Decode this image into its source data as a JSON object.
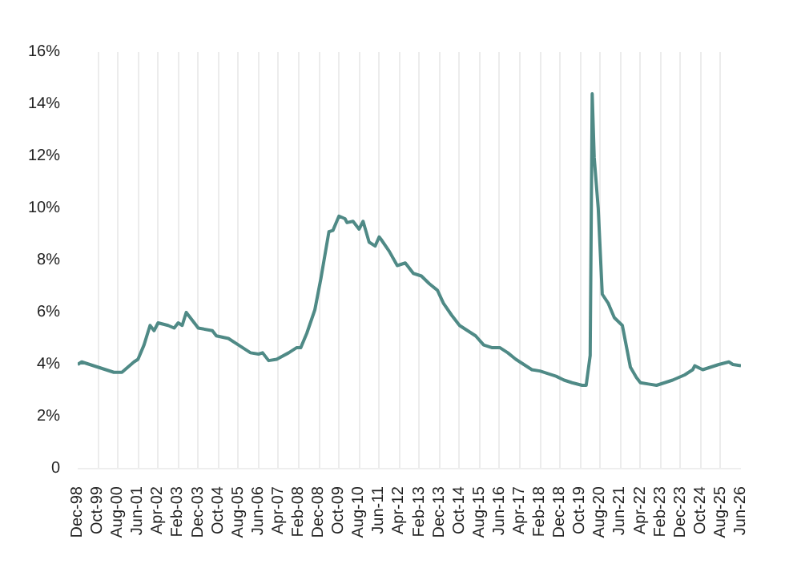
{
  "chart_data": {
    "type": "line",
    "grid": "x",
    "marker": "none",
    "line_style": "solid",
    "xlim": [
      "1998-12",
      "2026-06"
    ],
    "xticks": [
      {
        "value": "1998-12",
        "label": "Dec-98"
      },
      {
        "value": "1999-10",
        "label": "Oct-99"
      },
      {
        "value": "2000-08",
        "label": "Aug-00"
      },
      {
        "value": "2001-06",
        "label": "Jun-01"
      },
      {
        "value": "2002-04",
        "label": "Apr-02"
      },
      {
        "value": "2003-02",
        "label": "Feb-03"
      },
      {
        "value": "2003-12",
        "label": "Dec-03"
      },
      {
        "value": "2004-10",
        "label": "Oct-04"
      },
      {
        "value": "2005-08",
        "label": "Aug-05"
      },
      {
        "value": "2006-06",
        "label": "Jun-06"
      },
      {
        "value": "2007-04",
        "label": "Apr-07"
      },
      {
        "value": "2008-02",
        "label": "Feb-08"
      },
      {
        "value": "2008-12",
        "label": "Dec-08"
      },
      {
        "value": "2009-10",
        "label": "Oct-09"
      },
      {
        "value": "2010-08",
        "label": "Aug-10"
      },
      {
        "value": "2011-06",
        "label": "Jun-11"
      },
      {
        "value": "2012-04",
        "label": "Apr-12"
      },
      {
        "value": "2013-02",
        "label": "Feb-13"
      },
      {
        "value": "2013-12",
        "label": "Dec-13"
      },
      {
        "value": "2014-10",
        "label": "Oct-14"
      },
      {
        "value": "2015-08",
        "label": "Aug-15"
      },
      {
        "value": "2016-06",
        "label": "Jun-16"
      },
      {
        "value": "2017-04",
        "label": "Apr-17"
      },
      {
        "value": "2018-02",
        "label": "Feb-18"
      },
      {
        "value": "2018-12",
        "label": "Dec-18"
      },
      {
        "value": "2019-10",
        "label": "Oct-19"
      },
      {
        "value": "2020-08",
        "label": "Aug-20"
      },
      {
        "value": "2021-06",
        "label": "Jun-21"
      },
      {
        "value": "2022-04",
        "label": "Apr-22"
      },
      {
        "value": "2023-02",
        "label": "Feb-23"
      },
      {
        "value": "2023-12",
        "label": "Dec-23"
      },
      {
        "value": "2024-10",
        "label": "Oct-24"
      },
      {
        "value": "2025-08",
        "label": "Aug-25"
      },
      {
        "value": "2026-06",
        "label": "Jun-26"
      }
    ],
    "ylim": [
      0,
      16
    ],
    "yticks": [
      0,
      {
        "value": 2,
        "label": "2%"
      },
      {
        "value": 4,
        "label": "4%"
      },
      {
        "value": 6,
        "label": "6%"
      },
      {
        "value": 8,
        "label": "8%"
      },
      {
        "value": 10,
        "label": "10%"
      },
      {
        "value": 12,
        "label": "12%"
      },
      {
        "value": 14,
        "label": "14%"
      },
      {
        "value": 16,
        "label": "16%"
      }
    ],
    "x": [
      "1998-12",
      "1999-02",
      "1999-10",
      "2000-06",
      "2000-10",
      "2001-04",
      "2001-06",
      "2001-09",
      "2001-12",
      "2002-02",
      "2002-04",
      "2002-09",
      "2002-12",
      "2003-02",
      "2003-04",
      "2003-06",
      "2003-09",
      "2003-12",
      "2004-07",
      "2004-09",
      "2005-03",
      "2005-08",
      "2006-02",
      "2006-06",
      "2006-08",
      "2006-11",
      "2007-03",
      "2007-09",
      "2008-01",
      "2008-03",
      "2008-06",
      "2008-10",
      "2009-01",
      "2009-05",
      "2009-07",
      "2009-10",
      "2010-01",
      "2010-02",
      "2010-05",
      "2010-08",
      "2010-10",
      "2011-01",
      "2011-04",
      "2011-06",
      "2011-07",
      "2011-11",
      "2012-03",
      "2012-07",
      "2012-11",
      "2013-03",
      "2013-07",
      "2013-11",
      "2014-02",
      "2014-06",
      "2014-10",
      "2015-02",
      "2015-06",
      "2015-10",
      "2016-02",
      "2016-06",
      "2016-10",
      "2017-02",
      "2017-06",
      "2017-10",
      "2018-02",
      "2018-06",
      "2018-10",
      "2019-02",
      "2019-06",
      "2019-11",
      "2020-01",
      "2020-03",
      "2020-04",
      "2020-05",
      "2020-07",
      "2020-09",
      "2020-12",
      "2021-03",
      "2021-07",
      "2021-11",
      "2022-02",
      "2022-04",
      "2022-08",
      "2022-12",
      "2023-04",
      "2023-08",
      "2024-02",
      "2024-06",
      "2024-07",
      "2024-11",
      "2025-03",
      "2025-07",
      "2025-12",
      "2026-02",
      "2026-06"
    ],
    "series": [
      {
        "color": "#4f8a86",
        "values": [
          4.0,
          4.1,
          3.9,
          3.7,
          3.7,
          4.1,
          4.2,
          4.75,
          5.5,
          5.3,
          5.6,
          5.5,
          5.4,
          5.6,
          5.5,
          6.0,
          5.7,
          5.4,
          5.3,
          5.1,
          5.0,
          4.75,
          4.45,
          4.4,
          4.45,
          4.15,
          4.2,
          4.45,
          4.65,
          4.65,
          5.2,
          6.1,
          7.3,
          9.1,
          9.15,
          9.7,
          9.6,
          9.45,
          9.5,
          9.2,
          9.5,
          8.7,
          8.55,
          8.9,
          8.8,
          8.35,
          7.8,
          7.9,
          7.5,
          7.4,
          7.1,
          6.85,
          6.35,
          5.9,
          5.5,
          5.3,
          5.1,
          4.75,
          4.65,
          4.65,
          4.45,
          4.2,
          4.0,
          3.8,
          3.75,
          3.65,
          3.55,
          3.4,
          3.3,
          3.2,
          3.2,
          4.35,
          14.4,
          11.95,
          10.0,
          6.7,
          6.35,
          5.8,
          5.5,
          3.9,
          3.5,
          3.3,
          3.25,
          3.2,
          3.3,
          3.4,
          3.6,
          3.8,
          3.95,
          3.8,
          3.9,
          4.0,
          4.1,
          4.0,
          3.95
        ]
      }
    ]
  }
}
